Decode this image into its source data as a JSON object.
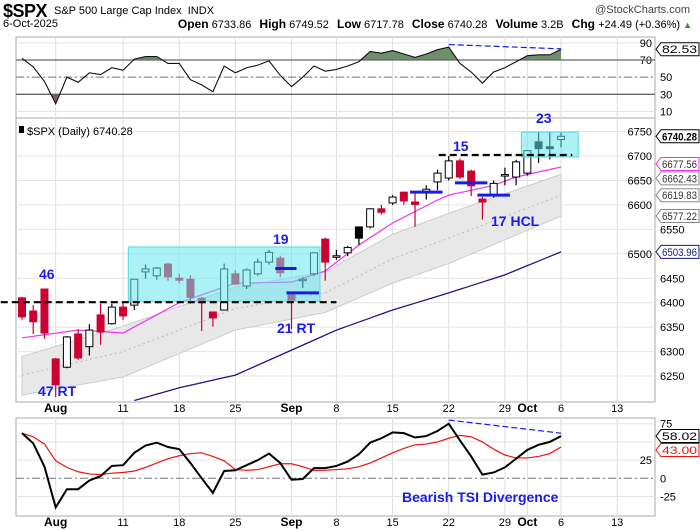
{
  "header": {
    "symbol": "$SPX",
    "name": "S&P 500 Large Cap Index",
    "exchange": "INDX",
    "brand": "@StockCharts.com",
    "date": "6-Oct-2025",
    "open_label": "Open",
    "open": "6733.86",
    "high_label": "High",
    "high": "6749.52",
    "low_label": "Low",
    "low": "6717.78",
    "close_label": "Close",
    "close": "6740.28",
    "volume_label": "Volume",
    "volume": "3.2B",
    "chg_label": "Chg",
    "chg": "+24.49 (+0.36%)",
    "chg_icon": "triangle-up"
  },
  "colors": {
    "down": "#cc0033",
    "up_outline": "#000000",
    "ma_fast": "#ee33ee",
    "ma_slow": "#1a1a80",
    "band": "#e8e8e8",
    "band_mid": "#bbbbbb",
    "box": "#66e6ee",
    "annotation": "#1a1aee",
    "rsi_over": "#6f8f6c",
    "rsi_under": "#7a5a72",
    "tsi": "#000000",
    "tsi_signal": "#ee1111"
  },
  "chart_data": [
    {
      "type": "line",
      "panel": "rsi",
      "ylim": [
        0,
        100
      ],
      "yticks": [
        10,
        30,
        50,
        70,
        90
      ],
      "reference_lines": [
        30,
        50,
        70
      ],
      "last_value_label": "82.53",
      "values": [
        72,
        62,
        45,
        19,
        50,
        44,
        55,
        53,
        61,
        58,
        71,
        74,
        74,
        66,
        66,
        47,
        41,
        33,
        63,
        55,
        61,
        64,
        69,
        52,
        39,
        50,
        63,
        57,
        59,
        63,
        68,
        80,
        78,
        81,
        77,
        73,
        77,
        82,
        85,
        66,
        56,
        43,
        56,
        61,
        68,
        75,
        76,
        76,
        82.53
      ],
      "divergence": {
        "from": "Sep 22",
        "from_value": 88,
        "to": "Oct 6",
        "to_value": 83
      }
    },
    {
      "type": "candlestick",
      "panel": "price",
      "legend": "$SPX (Daily) 6740.28",
      "ylim": [
        6200,
        6760
      ],
      "yticks": [
        6250,
        6300,
        6350,
        6400,
        6450,
        6500,
        6550,
        6600,
        6650,
        6700,
        6750
      ],
      "dates": [
        "Jul 29",
        "Jul 30",
        "Jul 31",
        "Aug 1",
        "Aug 4",
        "Aug 5",
        "Aug 6",
        "Aug 7",
        "Aug 8",
        "Aug 11",
        "Aug 12",
        "Aug 13",
        "Aug 14",
        "Aug 15",
        "Aug 18",
        "Aug 19",
        "Aug 20",
        "Aug 21",
        "Aug 22",
        "Aug 25",
        "Aug 26",
        "Aug 27",
        "Aug 28",
        "Aug 29",
        "Sep 2",
        "Sep 3",
        "Sep 4",
        "Sep 5",
        "Sep 8",
        "Sep 9",
        "Sep 10",
        "Sep 11",
        "Sep 12",
        "Sep 15",
        "Sep 16",
        "Sep 17",
        "Sep 18",
        "Sep 19",
        "Sep 22",
        "Sep 23",
        "Sep 24",
        "Sep 25",
        "Sep 26",
        "Sep 29",
        "Sep 30",
        "Oct 1",
        "Oct 2",
        "Oct 3",
        "Oct 6"
      ],
      "ohlc": [
        [
          6410,
          6412,
          6365,
          6371
        ],
        [
          6383,
          6395,
          6336,
          6361
        ],
        [
          6428,
          6428,
          6326,
          6338
        ],
        [
          6285,
          6287,
          6207,
          6232
        ],
        [
          6268,
          6332,
          6266,
          6330
        ],
        [
          6336,
          6346,
          6283,
          6287
        ],
        [
          6310,
          6356,
          6292,
          6344
        ],
        [
          6375,
          6398,
          6314,
          6340
        ],
        [
          6357,
          6398,
          6355,
          6391
        ],
        [
          6391,
          6400,
          6365,
          6373
        ],
        [
          6395,
          6448,
          6385,
          6448
        ],
        [
          6463,
          6478,
          6449,
          6469
        ],
        [
          6455,
          6473,
          6447,
          6471
        ],
        [
          6479,
          6482,
          6445,
          6453
        ],
        [
          6450,
          6459,
          6440,
          6446
        ],
        [
          6448,
          6456,
          6398,
          6411
        ],
        [
          6409,
          6412,
          6342,
          6400
        ],
        [
          6381,
          6381,
          6351,
          6369
        ],
        [
          6385,
          6480,
          6385,
          6469
        ],
        [
          6459,
          6466,
          6438,
          6438
        ],
        [
          6434,
          6470,
          6428,
          6467
        ],
        [
          6459,
          6490,
          6455,
          6483
        ],
        [
          6483,
          6508,
          6478,
          6503
        ],
        [
          6491,
          6496,
          6452,
          6461
        ],
        [
          6416,
          6416,
          6346,
          6404
        ],
        [
          6447,
          6452,
          6430,
          6448
        ],
        [
          6459,
          6502,
          6455,
          6502
        ],
        [
          6530,
          6533,
          6445,
          6483
        ],
        [
          6495,
          6508,
          6488,
          6496
        ],
        [
          6502,
          6516,
          6495,
          6513
        ],
        [
          6555,
          6555,
          6518,
          6532
        ],
        [
          6555,
          6593,
          6552,
          6592
        ],
        [
          6592,
          6600,
          6580,
          6585
        ],
        [
          6604,
          6620,
          6600,
          6616
        ],
        [
          6626,
          6627,
          6600,
          6608
        ],
        [
          6606,
          6626,
          6555,
          6601
        ],
        [
          6626,
          6640,
          6611,
          6632
        ],
        [
          6647,
          6672,
          6630,
          6665
        ],
        [
          6655,
          6700,
          6650,
          6690
        ],
        [
          6690,
          6695,
          6653,
          6657
        ],
        [
          6669,
          6672,
          6618,
          6639
        ],
        [
          6612,
          6616,
          6570,
          6606
        ],
        [
          6620,
          6650,
          6615,
          6644
        ],
        [
          6661,
          6676,
          6640,
          6662
        ],
        [
          6657,
          6692,
          6640,
          6688
        ],
        [
          6665,
          6711,
          6660,
          6711
        ],
        [
          6729,
          6750,
          6686,
          6715
        ],
        [
          6719,
          6750,
          6693,
          6715
        ],
        [
          6733.86,
          6749.52,
          6717.78,
          6740.28
        ]
      ],
      "overlays": {
        "ma_fast": {
          "last": "6677.56",
          "points": [
            [
              "Jul 29",
              6328
            ],
            [
              "Aug 5",
              6344
            ],
            [
              "Aug 11",
              6338
            ],
            [
              "Aug 18",
              6400
            ],
            [
              "Aug 25",
              6440
            ],
            [
              "Sep 2",
              6442
            ],
            [
              "Sep 5",
              6465
            ],
            [
              "Sep 10",
              6518
            ],
            [
              "Sep 15",
              6563
            ],
            [
              "Sep 19",
              6610
            ],
            [
              "Sep 22",
              6620
            ],
            [
              "Sep 26",
              6640
            ],
            [
              "Sep 30",
              6657
            ],
            [
              "Oct 6",
              6677.56
            ]
          ]
        },
        "band_upper": {
          "last": "6662.43",
          "points": [
            [
              "Jul 29",
              6290
            ],
            [
              "Aug 11",
              6352
            ],
            [
              "Aug 25",
              6432
            ],
            [
              "Sep 5",
              6463
            ],
            [
              "Sep 15",
              6540
            ],
            [
              "Sep 22",
              6583
            ],
            [
              "Oct 6",
              6662.43
            ]
          ]
        },
        "band_mid": {
          "last": "6619.83",
          "points": [
            [
              "Jul 29",
              6252
            ],
            [
              "Aug 11",
              6300
            ],
            [
              "Aug 25",
              6388
            ],
            [
              "Sep 5",
              6420
            ],
            [
              "Sep 15",
              6490
            ],
            [
              "Sep 22",
              6532
            ],
            [
              "Oct 6",
              6619.83
            ]
          ]
        },
        "band_lower": {
          "last": "6577.22",
          "points": [
            [
              "Jul 29",
              6211
            ],
            [
              "Aug 11",
              6248
            ],
            [
              "Aug 25",
              6344
            ],
            [
              "Sep 5",
              6380
            ],
            [
              "Sep 15",
              6440
            ],
            [
              "Sep 22",
              6480
            ],
            [
              "Oct 6",
              6577.22
            ]
          ]
        },
        "ma_slow": {
          "last": "6503.96",
          "points": [
            [
              "Aug 12",
              6200
            ],
            [
              "Aug 18",
              6226
            ],
            [
              "Aug 25",
              6252
            ],
            [
              "Sep 2",
              6303
            ],
            [
              "Sep 8",
              6344
            ],
            [
              "Sep 15",
              6385
            ],
            [
              "Sep 22",
              6420
            ],
            [
              "Sep 29",
              6457
            ],
            [
              "Oct 6",
              6503.96
            ]
          ]
        }
      },
      "boxes": [
        {
          "from": "Aug 12",
          "to": "Sep 4",
          "low": 6403,
          "high": 6514
        },
        {
          "from": "Oct 1",
          "to": "Oct 7",
          "low": 6698,
          "high": 6749
        }
      ],
      "dashed_levels": [
        {
          "from": "Jul 28",
          "to": "Sep 8",
          "price": 6401
        },
        {
          "from": "Sep 22",
          "to": "Oct 7",
          "price": 6702
        }
      ],
      "markers": [
        {
          "from": "Aug 29",
          "to": "Sep 2",
          "price": 6470
        },
        {
          "from": "Sep 2",
          "to": "Sep 4",
          "price": 6420
        },
        {
          "from": "Sep 17",
          "to": "Sep 19",
          "price": 6626
        },
        {
          "from": "Sep 23",
          "to": "Sep 25",
          "price": 6645
        },
        {
          "from": "Sep 25",
          "to": "Sep 29",
          "price": 6620
        }
      ],
      "annotations": [
        "46",
        "47 RT",
        "19",
        "21 RT",
        "15",
        "17 HCL",
        "23"
      ]
    },
    {
      "type": "line",
      "panel": "tsi",
      "ylim": [
        -45,
        85
      ],
      "yticks": [
        -25,
        0,
        25,
        75
      ],
      "title": "Bearish TSI Divergence",
      "series": [
        {
          "name": "TSI",
          "last": "58.02",
          "values": [
            62,
            48,
            16,
            -40,
            -15,
            -15,
            -3,
            3,
            17,
            18,
            35,
            45,
            49,
            43,
            40,
            21,
            0,
            -20,
            10,
            11,
            18,
            25,
            34,
            21,
            -2,
            -1,
            14,
            14,
            17,
            23,
            33,
            49,
            55,
            63,
            62,
            56,
            58,
            65,
            75,
            52,
            30,
            5,
            8,
            15,
            27,
            39,
            46,
            50,
            58.02
          ]
        },
        {
          "name": "Signal",
          "last": "43.00",
          "values": [
            62,
            57,
            47,
            24,
            15,
            9,
            6,
            5,
            7,
            8,
            10,
            15,
            21,
            27,
            31,
            34,
            35,
            30,
            24,
            12,
            11,
            12,
            16,
            20,
            20,
            16,
            11,
            11,
            12,
            13,
            16,
            21,
            28,
            35,
            41,
            46,
            47,
            50,
            55,
            59,
            57,
            50,
            40,
            32,
            28,
            28,
            30,
            34,
            43.0
          ]
        }
      ],
      "divergence": {
        "from": "Sep 22",
        "from_value": 80,
        "to": "Oct 6",
        "to_value": 62
      }
    }
  ],
  "x_axis": {
    "labels": [
      {
        "text": "Aug",
        "bold": true,
        "date": "Aug 1"
      },
      {
        "text": "11",
        "date": "Aug 11"
      },
      {
        "text": "18",
        "date": "Aug 18"
      },
      {
        "text": "25",
        "date": "Aug 25"
      },
      {
        "text": "Sep",
        "bold": true,
        "date": "Sep 2"
      },
      {
        "text": "8",
        "date": "Sep 8"
      },
      {
        "text": "15",
        "date": "Sep 15"
      },
      {
        "text": "22",
        "date": "Sep 22"
      },
      {
        "text": "29",
        "date": "Sep 29"
      },
      {
        "text": "Oct",
        "bold": true,
        "date": "Oct 1"
      },
      {
        "text": "6",
        "date": "Oct 6"
      },
      {
        "text": "13",
        "date": "Oct 13"
      }
    ]
  }
}
